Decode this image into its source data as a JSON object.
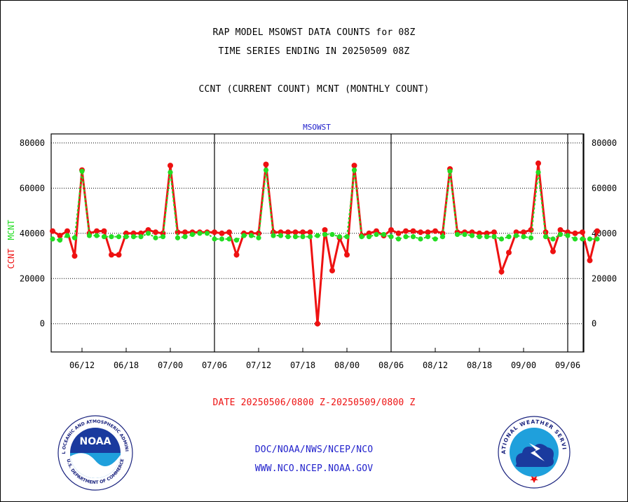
{
  "header": {
    "title_line1": "RAP MODEL MSOWST DATA COUNTS for 08Z",
    "title_line2": "TIME SERIES ENDING IN 20250509 08Z",
    "subtitle": "CCNT (CURRENT COUNT) MCNT (MONTHLY COUNT)"
  },
  "footer": {
    "date_range": "DATE 20250506/0800 Z-20250509/0800 Z",
    "org_path": "DOC/NOAA/NWS/NCEP/NCO",
    "website": "WWW.NCO.NCEP.NOAA.GOV"
  },
  "logos": {
    "noaa": {
      "center_text": "NOAA",
      "ring_top": "NATIONAL OCEANIC AND ATMOSPHERIC ADMINISTRATION",
      "ring_bottom": "U.S. DEPARTMENT OF COMMERCE"
    },
    "nws": {
      "ring_top": "NATIONAL WEATHER SERVICE"
    }
  },
  "colors": {
    "ccnt": "#ee1111",
    "mcnt": "#22dd22",
    "plot_label": "#2222cc",
    "footer_text": "#2222cc",
    "date_text": "#ee1111"
  },
  "chart_data": {
    "type": "line",
    "plot_label": "MSOWST",
    "ylabel_ccnt": "CCNT",
    "ylabel_mcnt": "MCNT",
    "ylim": [
      -12500,
      84000
    ],
    "yticks": [
      0,
      20000,
      40000,
      60000,
      80000
    ],
    "ytick_labels": [
      "0",
      "20000",
      "40000",
      "60000",
      "80000"
    ],
    "xticks": [
      "06/12",
      "06/18",
      "07/00",
      "07/06",
      "07/12",
      "07/18",
      "08/00",
      "08/06",
      "08/12",
      "08/18",
      "09/00",
      "09/06"
    ],
    "x_unit_note": "hourly points, 2025-05-06 08Z to 2025-05-09 08Z; vertical lines at 07/06, 08/06, 09/06 and the final hour 09/08",
    "x_range_hours": [
      "05/06 08Z",
      "05/09 08Z"
    ],
    "x_hours_first_tick": "06/12",
    "series": [
      {
        "name": "CCNT",
        "values": [
          41000,
          39000,
          41000,
          30000,
          68000,
          40000,
          41000,
          41000,
          30500,
          30500,
          40000,
          40000,
          40000,
          41500,
          40500,
          40000,
          70000,
          40500,
          40500,
          40500,
          40500,
          40500,
          40500,
          40000,
          40500,
          30500,
          40000,
          40000,
          40000,
          70500,
          40500,
          40500,
          40500,
          40500,
          40500,
          40500,
          0,
          41500,
          23500,
          38000,
          30500,
          70000,
          39000,
          40000,
          41000,
          39000,
          41500,
          40000,
          41000,
          41000,
          40500,
          40500,
          41000,
          40000,
          68500,
          40500,
          40500,
          40500,
          40000,
          40000,
          40500,
          23000,
          31500,
          40500,
          40500,
          41500,
          71000,
          40500,
          32000,
          41500,
          40500,
          40000,
          40500,
          28000,
          41000
        ]
      },
      {
        "name": "MCNT",
        "values": [
          37500,
          37000,
          39000,
          38000,
          67500,
          39000,
          39000,
          38500,
          38500,
          38500,
          38500,
          38500,
          38500,
          40000,
          38000,
          38500,
          67000,
          38000,
          38500,
          39500,
          40000,
          40000,
          37500,
          37500,
          37500,
          37000,
          39000,
          39000,
          38000,
          68000,
          39000,
          39000,
          38500,
          38500,
          38500,
          38500,
          39000,
          39500,
          39500,
          38500,
          38500,
          68000,
          38500,
          38500,
          39500,
          39500,
          38500,
          37500,
          38500,
          38500,
          37500,
          38500,
          37500,
          38500,
          67500,
          39500,
          39500,
          39000,
          38500,
          38500,
          38500,
          37500,
          38500,
          39000,
          38500,
          38000,
          67000,
          38500,
          37500,
          39500,
          39000,
          37500,
          37500,
          37500,
          37500
        ]
      }
    ]
  }
}
